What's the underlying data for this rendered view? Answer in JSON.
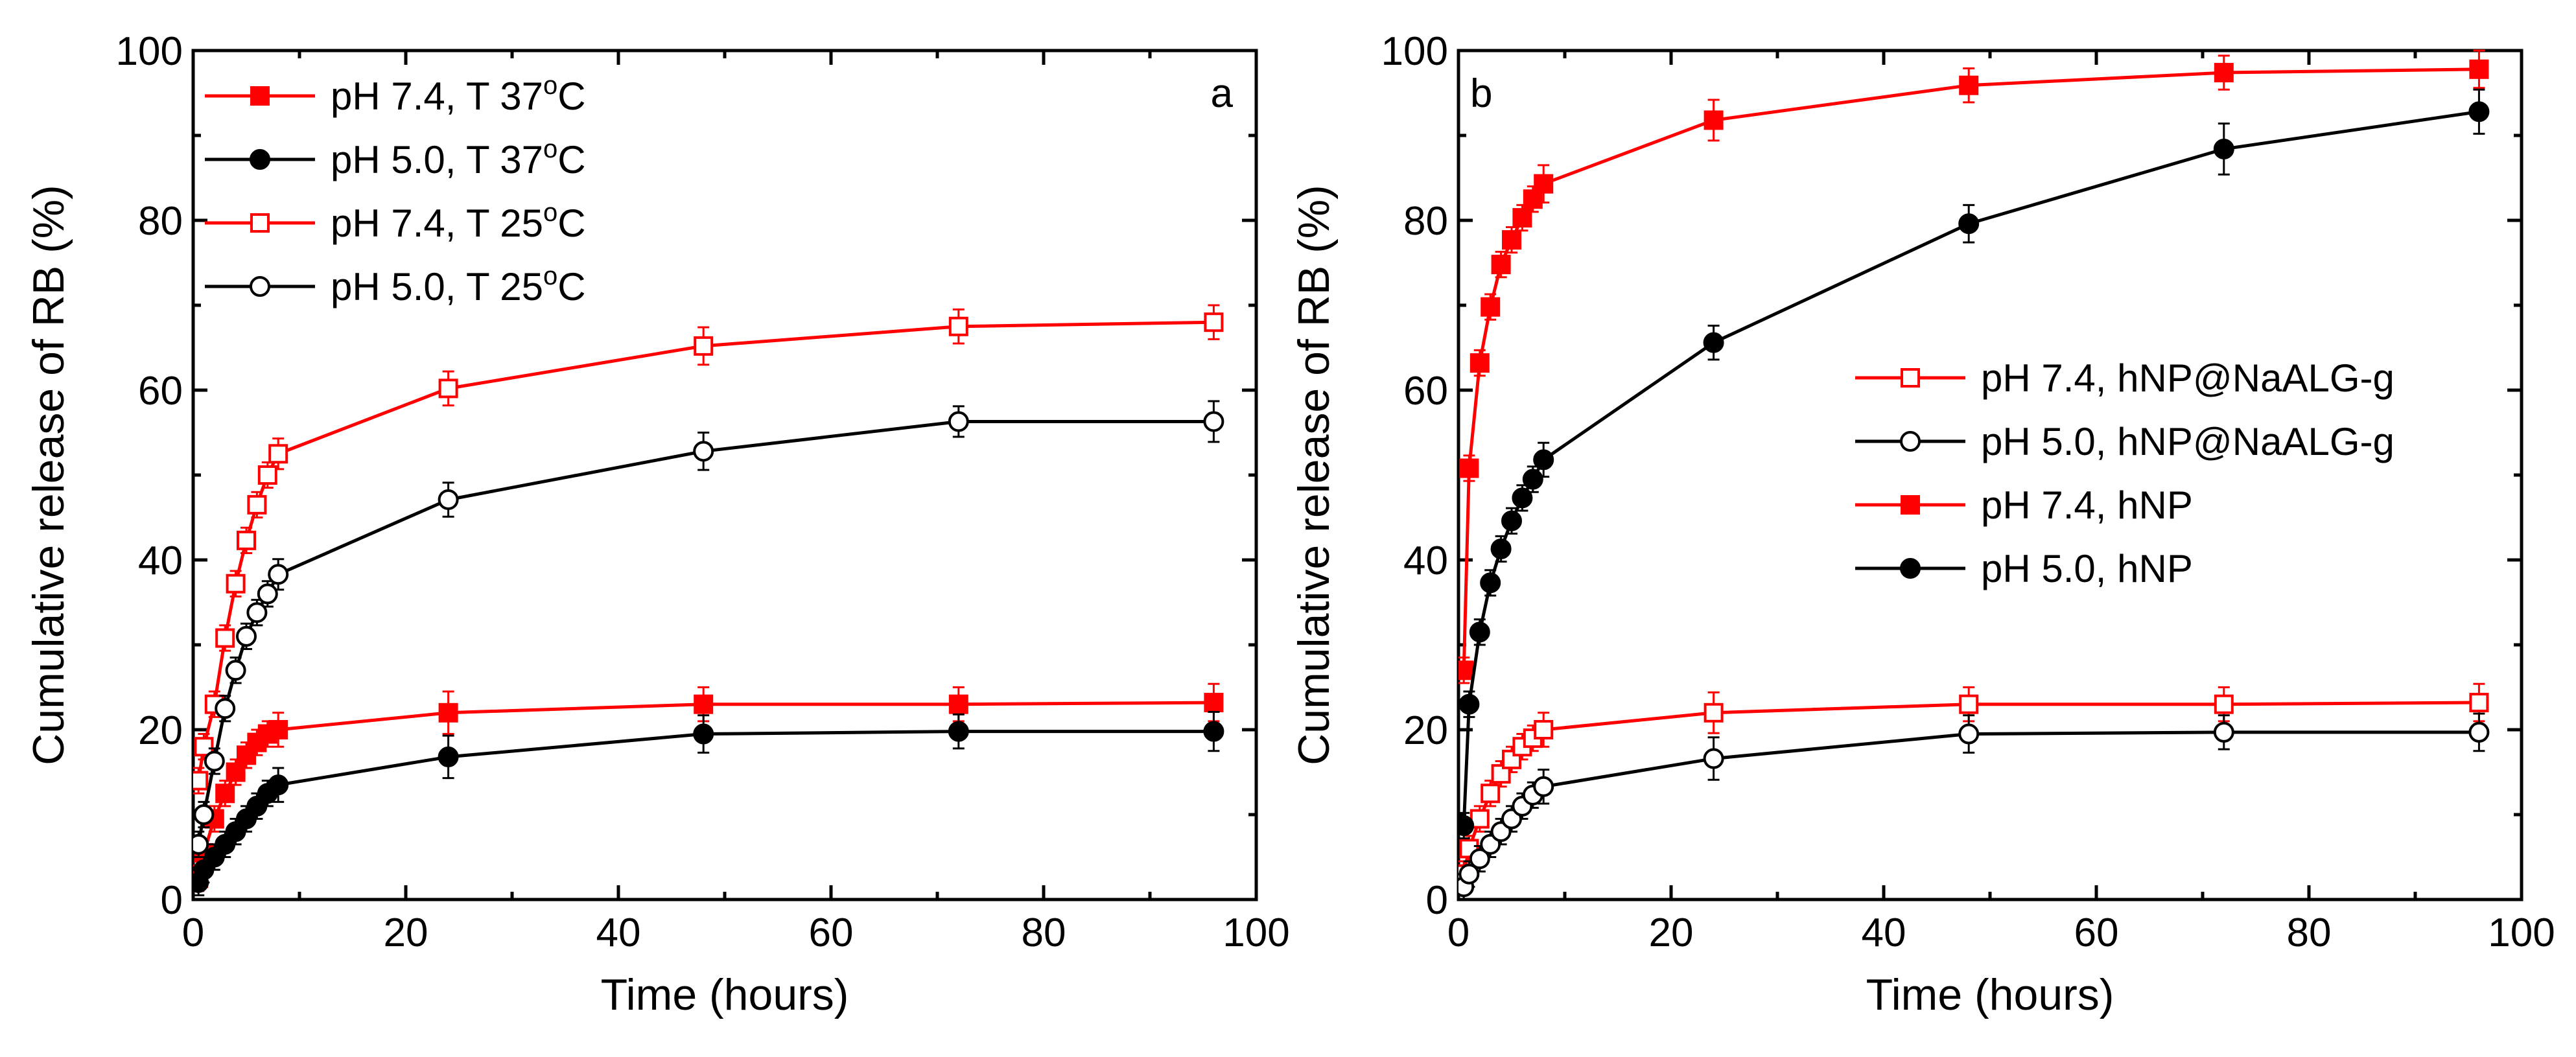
{
  "chart_data": [
    {
      "type": "line",
      "panel_label": "a",
      "xlabel": "Time (hours)",
      "ylabel": "Cumulative release of RB (%)",
      "xlim": [
        0,
        100
      ],
      "ylim": [
        0,
        100
      ],
      "x_ticks": [
        "0",
        "20",
        "40",
        "60",
        "80",
        "100"
      ],
      "y_ticks": [
        "0",
        "20",
        "40",
        "60",
        "80",
        "100"
      ],
      "legend_position": "top-left",
      "series": [
        {
          "name": "pH 7.4, T 37",
          "unit_sup": "o",
          "unit_tail": "C",
          "color": "#ff0000",
          "marker": "square-filled",
          "x": [
            0.5,
            1,
            2,
            3,
            4,
            5,
            6,
            7,
            8,
            24,
            48,
            72,
            96
          ],
          "y": [
            2.5,
            5.5,
            9.5,
            12.5,
            15,
            17,
            18.5,
            19.5,
            20,
            22,
            23,
            23,
            23.2
          ],
          "err": [
            1.5,
            1.5,
            1.5,
            1.5,
            1.5,
            1.5,
            1.5,
            1.5,
            2,
            2.5,
            2,
            2,
            2.2
          ]
        },
        {
          "name": "pH 5.0, T 37",
          "unit_sup": "o",
          "unit_tail": "C",
          "color": "#000000",
          "marker": "circle-filled",
          "x": [
            0.5,
            1,
            2,
            3,
            4,
            5,
            6,
            7,
            8,
            24,
            48,
            72,
            96
          ],
          "y": [
            2,
            3.5,
            5,
            6.5,
            8,
            9.5,
            11,
            12.5,
            13.5,
            16.8,
            19.5,
            19.8,
            19.8
          ],
          "err": [
            1.5,
            1.5,
            1.5,
            1.5,
            1.5,
            1.5,
            1.5,
            1.5,
            2,
            2.5,
            2.2,
            2,
            2.3
          ]
        },
        {
          "name": "pH 7.4, T 25",
          "unit_sup": "o",
          "unit_tail": "C",
          "color": "#ff0000",
          "marker": "square-open",
          "x": [
            0.5,
            1,
            2,
            3,
            4,
            5,
            6,
            7,
            8,
            24,
            48,
            72,
            96
          ],
          "y": [
            14,
            18,
            23,
            30.8,
            37.2,
            42.3,
            46.5,
            50,
            52.5,
            60.2,
            65.2,
            67.5,
            68
          ],
          "err": [
            1.5,
            1.5,
            1.5,
            1.5,
            1.5,
            1.5,
            1.5,
            1.5,
            1.8,
            2,
            2.2,
            2,
            2
          ]
        },
        {
          "name": "pH 5.0, T 25",
          "unit_sup": "o",
          "unit_tail": "C",
          "color": "#000000",
          "marker": "circle-open",
          "x": [
            0.5,
            1,
            2,
            3,
            4,
            5,
            6,
            7,
            8,
            24,
            48,
            72,
            96
          ],
          "y": [
            6.5,
            10,
            16.3,
            22.5,
            27,
            31,
            33.8,
            36,
            38.3,
            47.1,
            52.8,
            56.3,
            56.3
          ],
          "err": [
            1.5,
            1.5,
            1.5,
            1.5,
            1.5,
            1.5,
            1.5,
            1.5,
            1.8,
            2,
            2.2,
            1.8,
            2.4
          ]
        }
      ]
    },
    {
      "type": "line",
      "panel_label": "b",
      "xlabel": "Time (hours)",
      "ylabel": "Cumulative release of RB (%)",
      "xlim": [
        0,
        100
      ],
      "ylim": [
        0,
        100
      ],
      "x_ticks": [
        "0",
        "20",
        "40",
        "60",
        "80",
        "100"
      ],
      "y_ticks": [
        "0",
        "20",
        "40",
        "60",
        "80",
        "100"
      ],
      "legend_position": "middle-right",
      "series": [
        {
          "name": "pH 7.4, hNP@NaALG-g",
          "color": "#ff0000",
          "marker": "square-open",
          "x": [
            0.5,
            1,
            2,
            3,
            4,
            5,
            6,
            7,
            8,
            24,
            48,
            72,
            96
          ],
          "y": [
            3,
            6,
            9.5,
            12.5,
            14.8,
            16.5,
            18,
            19,
            20,
            22,
            23,
            23,
            23.2
          ],
          "err": [
            1.5,
            1.5,
            1.5,
            1.5,
            1.5,
            1.5,
            1.5,
            1.5,
            2,
            2.4,
            2,
            2,
            2.2
          ]
        },
        {
          "name": "pH 5.0, hNP@NaALG-g",
          "color": "#000000",
          "marker": "circle-open",
          "x": [
            0.5,
            1,
            2,
            3,
            4,
            5,
            6,
            7,
            8,
            24,
            48,
            72,
            96
          ],
          "y": [
            1.5,
            3,
            4.8,
            6.5,
            8,
            9.5,
            11,
            12.3,
            13.3,
            16.6,
            19.5,
            19.7,
            19.7
          ],
          "err": [
            1.5,
            1.5,
            1.5,
            1.5,
            1.5,
            1.5,
            1.5,
            1.5,
            2,
            2.5,
            2.2,
            2,
            2.2
          ]
        },
        {
          "name": "pH 7.4, hNP",
          "color": "#ff0000",
          "marker": "square-filled",
          "x": [
            0.5,
            1,
            2,
            3,
            4,
            5,
            6,
            7,
            8,
            24,
            48,
            72,
            96
          ],
          "y": [
            27,
            50.8,
            63.2,
            69.8,
            74.8,
            77.7,
            80.3,
            82.5,
            84.3,
            91.8,
            95.9,
            97.4,
            97.8
          ],
          "err": [
            1.5,
            1.5,
            1.5,
            1.5,
            1.5,
            1.5,
            1.5,
            1.5,
            2.2,
            2.4,
            2,
            2,
            2.2
          ]
        },
        {
          "name": "pH 5.0, hNP",
          "color": "#000000",
          "marker": "circle-filled",
          "x": [
            0.5,
            1,
            2,
            3,
            4,
            5,
            6,
            7,
            8,
            24,
            48,
            72,
            96
          ],
          "y": [
            8.7,
            23,
            31.5,
            37.3,
            41.3,
            44.6,
            47.3,
            49.5,
            51.8,
            65.6,
            79.6,
            88.4,
            92.8
          ],
          "err": [
            1.5,
            1.5,
            1.5,
            1.5,
            1.5,
            1.5,
            1.5,
            1.5,
            2,
            2,
            2.2,
            3,
            2.6
          ]
        }
      ]
    }
  ]
}
